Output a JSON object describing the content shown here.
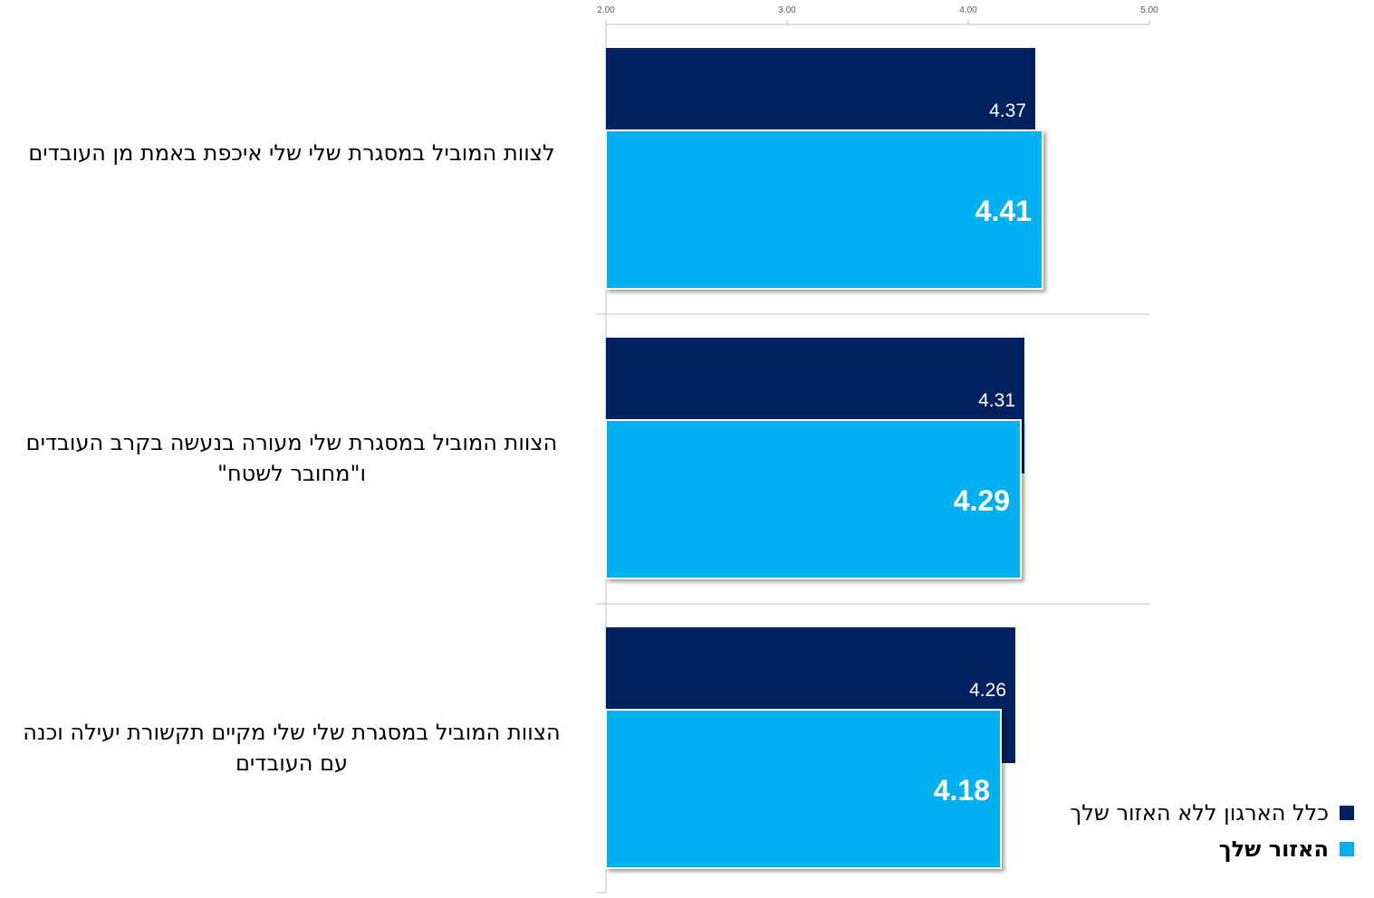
{
  "colors": {
    "org": "#002060",
    "region": "#00B0F0",
    "axis": "#bfbfbf",
    "label_dark": "#ffffff"
  },
  "chart_data": {
    "type": "bar",
    "orientation": "horizontal",
    "xlim": [
      2,
      5
    ],
    "ticks": [
      "2.00",
      "3.00",
      "4.00",
      "5.00"
    ],
    "tick_values": [
      2,
      3,
      4,
      5
    ],
    "categories": [
      "לצוות המוביל במסגרת שלי שלי איכפת באמת מן העובדים",
      "הצוות המוביל במסגרת שלי מעורה בנעשה בקרב העובדים ו\"מחובר  לשטח\"",
      "הצוות המוביל במסגרת שלי שלי מקיים תקשורת יעילה וכנה  עם העובדים"
    ],
    "series": [
      {
        "name": "כלל הארגון ללא האזור שלך",
        "values": [
          4.37,
          4.31,
          4.26
        ],
        "labels": [
          "4.37",
          "4.31",
          "4.26"
        ]
      },
      {
        "name": "האזור שלך",
        "values": [
          4.41,
          4.29,
          4.18
        ],
        "labels": [
          "4.41",
          "4.29",
          "4.18"
        ]
      }
    ],
    "legend_position": "bottom-right",
    "grid": false
  }
}
